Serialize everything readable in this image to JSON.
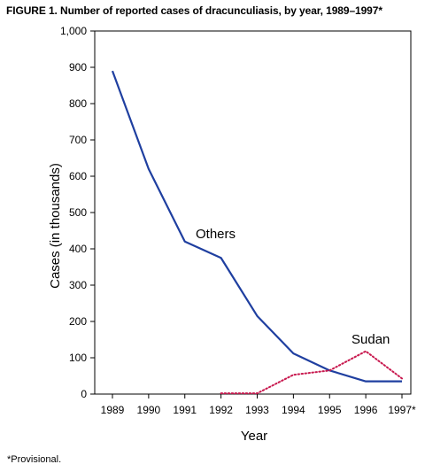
{
  "title": "FIGURE 1. Number of reported cases of dracunculiasis, by year, 1989–1997*",
  "footnote": "*Provisional.",
  "chart_data": {
    "type": "line",
    "title": "FIGURE 1. Number of reported cases of dracunculiasis, by year, 1989–1997*",
    "xlabel": "Year",
    "ylabel": "Cases (in thousands)",
    "ylim": [
      0,
      1000
    ],
    "yticks": [
      0,
      100,
      200,
      300,
      400,
      500,
      600,
      700,
      800,
      900,
      1000
    ],
    "ytick_labels": [
      "0",
      "100",
      "200",
      "300",
      "400",
      "500",
      "600",
      "700",
      "800",
      "900",
      "1,000"
    ],
    "categories": [
      "1989",
      "1990",
      "1991",
      "1992",
      "1993",
      "1994",
      "1995",
      "1996",
      "1997*"
    ],
    "grid": false,
    "legend": "none (series labeled directly on chart)",
    "series": [
      {
        "name": "Others",
        "style": "solid",
        "color": "#1f3fa0",
        "values": [
          890,
          620,
          420,
          375,
          215,
          112,
          65,
          35,
          35
        ]
      },
      {
        "name": "Sudan",
        "style": "dotted",
        "color": "#c8194f",
        "values": [
          null,
          null,
          null,
          2,
          2,
          53,
          65,
          118,
          43
        ]
      }
    ]
  }
}
